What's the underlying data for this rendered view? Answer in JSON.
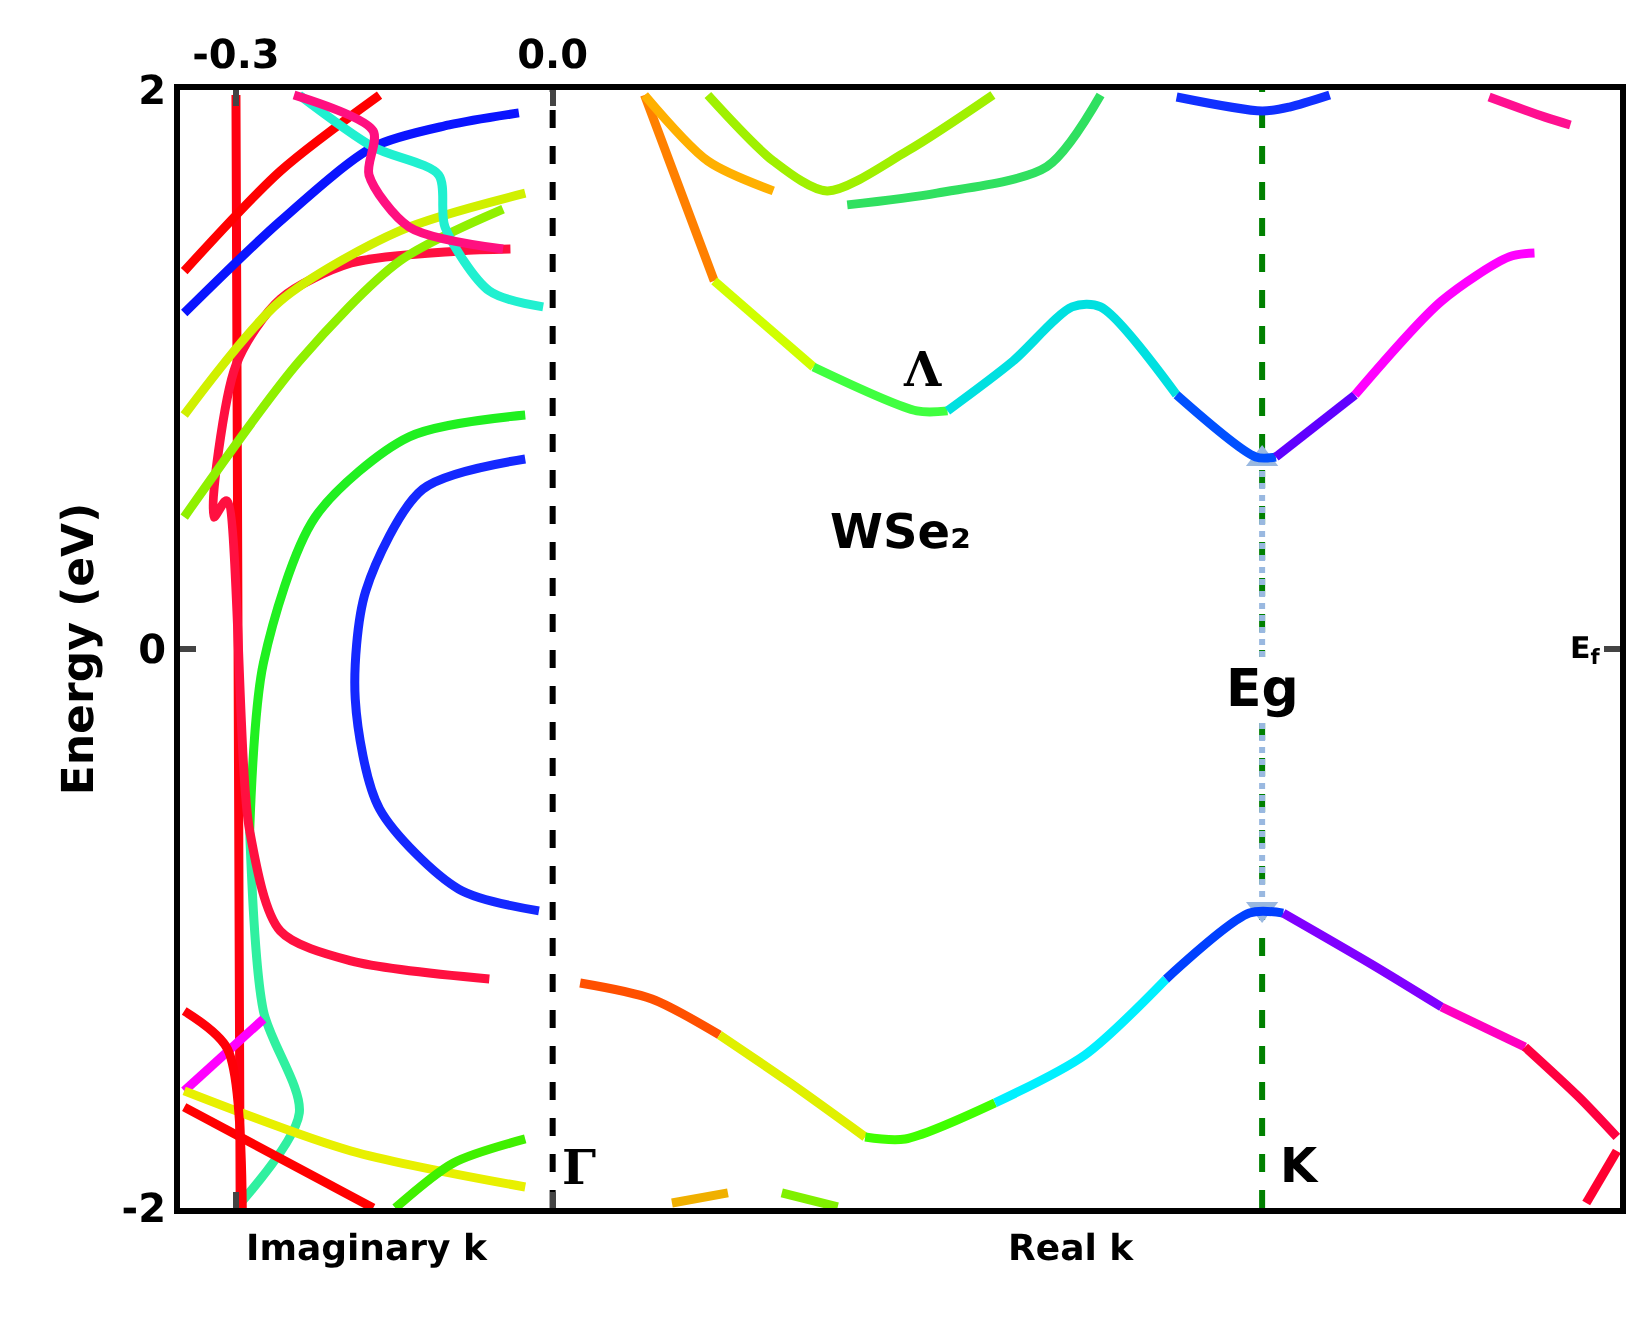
{
  "chart_data": {
    "type": "line",
    "ylabel": "Energy (eV)",
    "xlim": [
      -0.353,
      1.011
    ],
    "ylim": [
      -2,
      2
    ],
    "xticks": [
      -0.3,
      {
        "value": 0,
        "label": "0.0"
      }
    ],
    "yticks": [
      -2,
      0,
      2
    ],
    "grid": false,
    "marker": "none",
    "line_style": "solid",
    "ref_lines": [
      {
        "axis": "x",
        "value": 0,
        "color": "#000000",
        "line_style": "dashed"
      },
      {
        "axis": "x",
        "value": 0.672,
        "color": "#008000",
        "line_style": "dashed"
      }
    ],
    "annotations": [
      "Γ",
      "K",
      "Λ",
      "Eg",
      "E$_{f}$",
      "WSe₂",
      "Imaginary k",
      "Real k"
    ],
    "series": [
      {
        "color": "#99b8e0",
        "line_style": "dotted",
        "marker": "triangle",
        "x": [
          0.672,
          0.672
        ],
        "values": [
          -0.93,
          0.68
        ]
      },
      {
        "color": "#ff5000",
        "x": [
          0.026,
          0.094,
          0.158
        ],
        "values": [
          -1.195,
          -1.252,
          -1.381
        ]
      },
      {
        "color": "#e0f000",
        "x": [
          0.158,
          0.225,
          0.296
        ],
        "values": [
          -1.381,
          -1.553,
          -1.746
        ]
      },
      {
        "color": "#40ff00",
        "x": [
          0.296,
          0.334,
          0.419
        ],
        "values": [
          -1.746,
          -1.753,
          -1.624
        ]
      },
      {
        "color": "#00f0ff",
        "x": [
          0.419,
          0.504,
          0.581
        ],
        "values": [
          -1.624,
          -1.453,
          -1.181
        ]
      },
      {
        "color": "#0040ff",
        "x": [
          0.581,
          0.66,
          0.692
        ],
        "values": [
          -1.181,
          -0.945,
          -0.945
        ]
      },
      {
        "color": "#8000ff",
        "x": [
          0.692,
          0.777,
          0.842
        ],
        "values": [
          -0.945,
          -1.131,
          -1.281
        ]
      },
      {
        "color": "#ff00c0",
        "x": [
          0.842,
          0.921
        ],
        "values": [
          -1.281,
          -1.424
        ]
      },
      {
        "color": "#ff0040",
        "x": [
          0.921,
          0.972,
          1.008
        ],
        "values": [
          -1.424,
          -1.603,
          -1.746
        ]
      },
      {
        "color": "#ff8000",
        "x": [
          0.087,
          0.153
        ],
        "values": [
          1.982,
          1.317
        ]
      },
      {
        "color": "#d0ff00",
        "x": [
          0.153,
          0.247
        ],
        "values": [
          1.317,
          1.009
        ]
      },
      {
        "color": "#40ff40",
        "x": [
          0.247,
          0.345,
          0.374
        ],
        "values": [
          1.009,
          0.852,
          0.852
        ]
      },
      {
        "color": "#00e0e0",
        "x": [
          0.374,
          0.436,
          0.492,
          0.519,
          0.591
        ],
        "values": [
          0.852,
          1.03,
          1.224,
          1.224,
          0.909
        ]
      },
      {
        "color": "#0050ff",
        "x": [
          0.591,
          0.666,
          0.685
        ],
        "values": [
          0.909,
          0.687,
          0.687
        ]
      },
      {
        "color": "#6000ff",
        "x": [
          0.685,
          0.76
        ],
        "values": [
          0.687,
          0.909
        ]
      },
      {
        "color": "#ff00ff",
        "x": [
          0.76,
          0.842,
          0.906,
          0.93
        ],
        "values": [
          0.909,
          1.245,
          1.403,
          1.417
        ]
      },
      {
        "color": "#a0f000",
        "x": [
          0.147,
          0.209,
          0.26,
          0.336,
          0.417
        ],
        "values": [
          1.982,
          1.746,
          1.639,
          1.782,
          1.982
        ]
      },
      {
        "color": "#ffb000",
        "x": [
          0.087,
          0.147,
          0.209
        ],
        "values": [
          1.982,
          1.746,
          1.639
        ]
      },
      {
        "color": "#30e060",
        "x": [
          0.279,
          0.364,
          0.468,
          0.519
        ],
        "values": [
          1.589,
          1.631,
          1.725,
          1.982
        ]
      },
      {
        "color": "#1030ff",
        "x": [
          0.591,
          0.672,
          0.698,
          0.736
        ],
        "values": [
          1.975,
          1.925,
          1.939,
          1.982
        ]
      },
      {
        "color": "#ff1090",
        "x": [
          0.887,
          0.94,
          0.964
        ],
        "values": [
          1.975,
          1.903,
          1.875
        ]
      },
      {
        "color": "#f0b000",
        "x": [
          0.113,
          0.166
        ],
        "values": [
          -1.982,
          -1.946
        ]
      },
      {
        "color": "#80f000",
        "x": [
          0.217,
          0.27
        ],
        "values": [
          -1.946,
          -1.996
        ]
      },
      {
        "color": "#ff0030",
        "x": [
          0.979,
          1.008
        ],
        "values": [
          -1.982,
          -1.796
        ]
      },
      {
        "color": "#1428ff",
        "x": [
          -0.026,
          -0.123,
          -0.177,
          -0.187,
          -0.164,
          -0.089,
          -0.013
        ],
        "values": [
          0.68,
          0.572,
          0.208,
          -0.179,
          -0.572,
          -0.859,
          -0.937
        ]
      },
      {
        "color": "#20f020",
        "x": [
          -0.026,
          -0.136,
          -0.225,
          -0.274,
          -0.287
        ],
        "values": [
          0.837,
          0.759,
          0.472,
          -0.05,
          -0.651
        ]
      },
      {
        "color": "#30f0a0",
        "x": [
          -0.287,
          -0.274,
          -0.24,
          -0.294
        ],
        "values": [
          -0.651,
          -1.295,
          -1.66,
          -1.975
        ]
      },
      {
        "color": "#ff0010",
        "x": [
          -0.3,
          -0.298,
          -0.296
        ],
        "values": [
          1.982,
          -0.007,
          -2.0
        ]
      },
      {
        "color": "#ff1040",
        "x": [
          -0.06,
          -0.191,
          -0.258,
          -0.287,
          -0.309,
          -0.321,
          -0.3,
          -0.258,
          -0.191,
          -0.089,
          -0.04
        ],
        "values": [
          -1.181,
          -1.116,
          -1.009,
          -0.651,
          0.53,
          0.472,
          1.016,
          1.252,
          1.381,
          1.424,
          1.431
        ]
      },
      {
        "color": "#ff0000",
        "x": [
          -0.349,
          -0.258,
          -0.164
        ],
        "values": [
          1.352,
          1.71,
          1.982
        ]
      },
      {
        "color": "#0a14ff",
        "x": [
          -0.349,
          -0.258,
          -0.17,
          -0.098,
          -0.032
        ],
        "values": [
          1.202,
          1.531,
          1.796,
          1.875,
          1.918
        ]
      },
      {
        "color": "#d0f000",
        "x": [
          -0.349,
          -0.258,
          -0.145,
          -0.026
        ],
        "values": [
          0.837,
          1.245,
          1.496,
          1.631
        ]
      },
      {
        "color": "#90f000",
        "x": [
          -0.349,
          -0.24,
          -0.145,
          -0.047
        ],
        "values": [
          0.472,
          1.03,
          1.388,
          1.574
        ]
      },
      {
        "color": "#20f0d0",
        "x": [
          -0.24,
          -0.17,
          -0.108,
          -0.102,
          -0.06,
          -0.009
        ],
        "values": [
          1.982,
          1.796,
          1.696,
          1.51,
          1.281,
          1.224
        ]
      },
      {
        "color": "#ff1080",
        "x": [
          -0.245,
          -0.17,
          -0.174,
          -0.136,
          -0.047
        ],
        "values": [
          1.982,
          1.853,
          1.696,
          1.51,
          1.431
        ]
      },
      {
        "color": "#ff00ff",
        "x": [
          -0.349,
          -0.274
        ],
        "values": [
          -1.581,
          -1.324
        ]
      },
      {
        "color": "#e8f000",
        "x": [
          -0.349,
          -0.191,
          -0.026
        ],
        "values": [
          -1.581,
          -1.796,
          -1.925
        ]
      },
      {
        "color": "#ff0000",
        "x": [
          -0.349,
          -0.17
        ],
        "values": [
          -1.639,
          -2.0
        ]
      },
      {
        "color": "#ff0008",
        "x": [
          -0.349,
          -0.308,
          -0.294
        ],
        "values": [
          -1.295,
          -1.431,
          -2.0
        ]
      },
      {
        "color": "#40f000",
        "x": [
          -0.149,
          -0.094,
          -0.026
        ],
        "values": [
          -2.0,
          -1.839,
          -1.753
        ]
      }
    ]
  }
}
